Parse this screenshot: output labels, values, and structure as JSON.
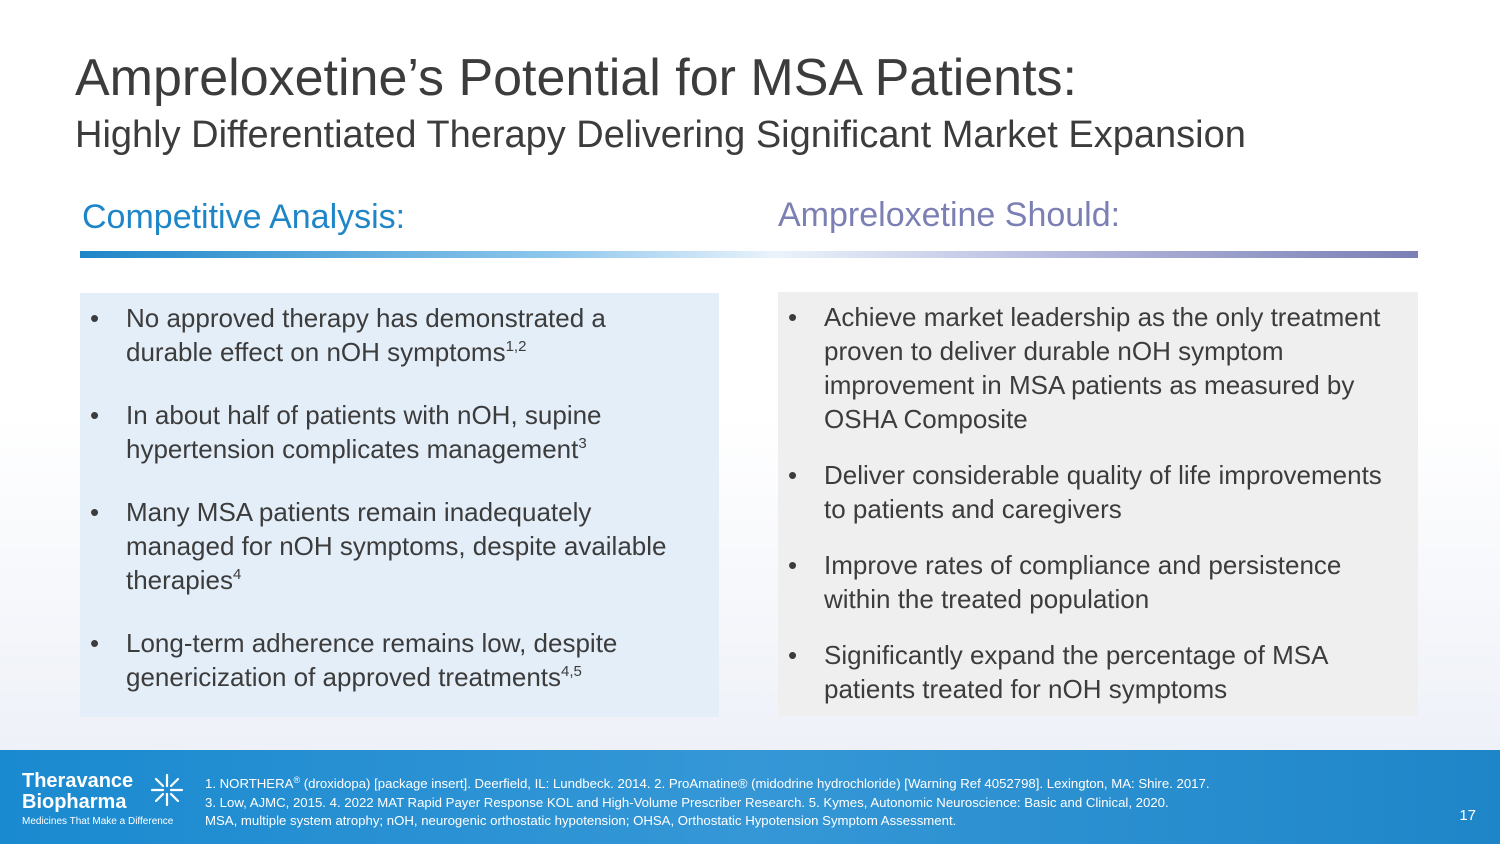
{
  "title": "Ampreloxetine’s Potential for MSA Patients:",
  "subtitle": "Highly Differentiated Therapy Delivering Significant Market Expansion",
  "left_heading": "Competitive Analysis:",
  "right_heading": "Ampreloxetine Should:",
  "bullet_glyph": "•",
  "left_bullets": [
    {
      "text": "No approved therapy has demonstrated a durable effect on nOH symptoms",
      "sup": "1,2"
    },
    {
      "text": "In about half of patients with nOH, supine hypertension complicates management",
      "sup": "3"
    },
    {
      "text": "Many MSA patients remain inadequately managed for nOH symptoms, despite available therapies",
      "sup": "4"
    },
    {
      "text": "Long-term adherence remains low, despite genericization of approved treatments",
      "sup": "4,5"
    }
  ],
  "right_bullets": [
    {
      "text": "Achieve market leadership as the only treatment proven to deliver durable nOH symptom improvement in MSA patients as measured by OSHA Composite"
    },
    {
      "text": "Deliver considerable quality of life improvements to patients and caregivers"
    },
    {
      "text": "Improve rates of compliance and persistence within the treated population"
    },
    {
      "text": "Significantly expand the percentage of MSA patients treated for nOH symptoms"
    }
  ],
  "footer": {
    "logo_line1": "Theravance",
    "logo_line2": "Biopharma",
    "logo_tagline": "Medicines That Make a Difference",
    "references": {
      "line1_a": "1. NORTHERA",
      "line1_reg": "®",
      "line1_b": " (droxidopa) [package insert]. Deerfield, IL: Lundbeck. 2014.  2. ProAmatine® (midodrine hydrochloride) [Warning Ref 4052798]. Lexington, MA: Shire. 2017.",
      "line2": "3. Low, AJMC, 2015. 4. 2022 MAT Rapid Payer Response KOL and High-Volume Prescriber Research.  5. Kymes, Autonomic Neuroscience: Basic and Clinical, 2020.",
      "line3": "MSA, multiple system atrophy; nOH, neurogenic orthostatic hypotension; OHSA, Orthostatic Hypotension Symptom Assessment."
    },
    "page_number": "17"
  },
  "colors": {
    "title_text": "#3c3c3c",
    "left_accent": "#1e86c8",
    "right_accent": "#7b7fb4",
    "left_panel_bg": "#e4eef8",
    "right_panel_bg": "#efefef",
    "footer_bg": "#1e86c8"
  },
  "icons": {
    "logo_mark": "star-burst-logo-icon"
  }
}
